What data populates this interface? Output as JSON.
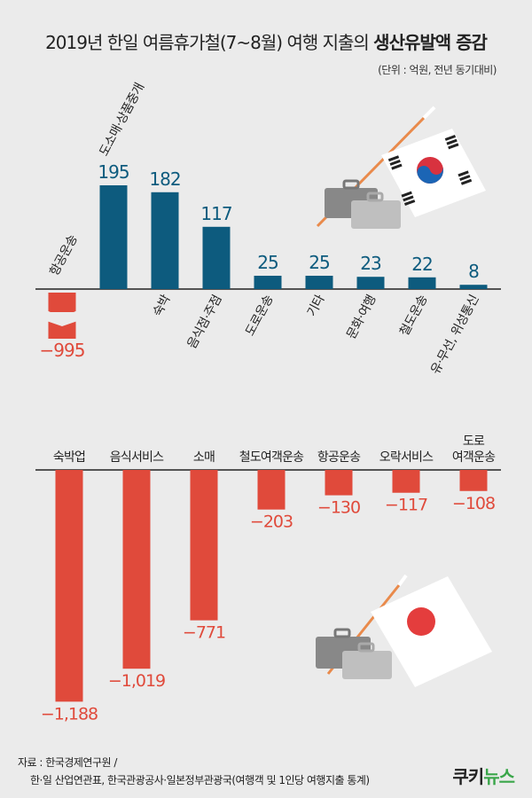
{
  "title_plain": "2019년 한일 여름휴가철(7~8월) 여행 지출의 ",
  "title_bold": "생산유발액 증감",
  "unit": "(단위 : 억원, 전년 동기대비)",
  "source_line1": "자료 : 한국경제연구원 /",
  "source_line2": "한·일 산업연관표, 한국관광공사·일본정부관광국(여행객 및 1인당 여행지출 통계)",
  "logo_a": "쿠키",
  "logo_b": "뉴스",
  "colors": {
    "positive": "#0d5b7e",
    "negative": "#e04a3b",
    "background": "#ebebeb"
  },
  "chart_data": [
    {
      "type": "bar",
      "categories": [
        "항공운송",
        "도소매·상품중개",
        "숙박",
        "음식점·주점",
        "도로운송",
        "기타",
        "문화·여행",
        "철도운송",
        "유·무선, 위성통신"
      ],
      "values": [
        -995,
        195,
        182,
        117,
        25,
        25,
        23,
        22,
        8
      ],
      "value_labels": [
        "−995",
        "195",
        "182",
        "117",
        "25",
        "25",
        "23",
        "22",
        "8"
      ],
      "note": "broken-axis bar for 항공운송"
    },
    {
      "type": "bar",
      "categories": [
        "숙박업",
        "음식서비스",
        "소매",
        "철도여객운송",
        "항공운송",
        "오락서비스",
        "도로\n여객운송"
      ],
      "values": [
        -1188,
        -1019,
        -771,
        -203,
        -130,
        -117,
        -108
      ],
      "value_labels": [
        "−1,188",
        "−1,019",
        "−771",
        "−203",
        "−130",
        "−117",
        "−108"
      ]
    }
  ]
}
